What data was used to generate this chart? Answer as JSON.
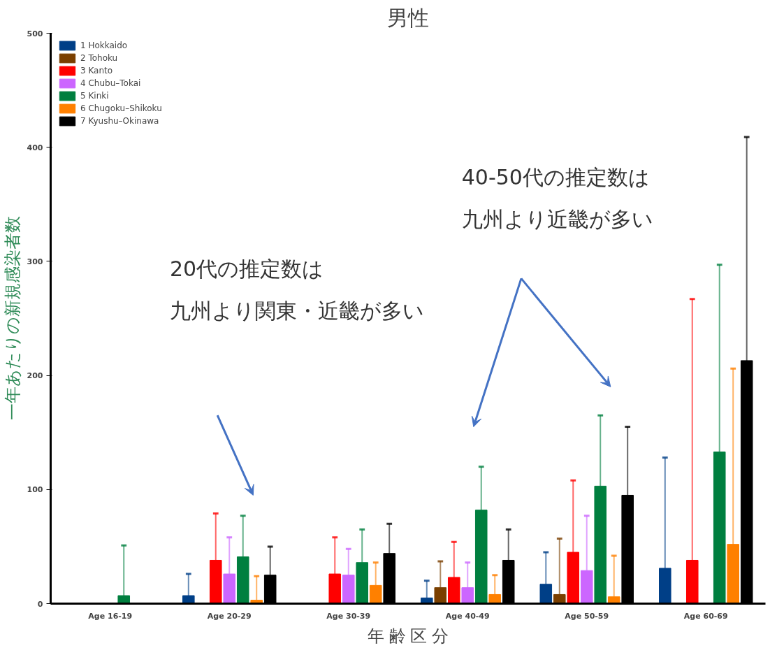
{
  "chart_data": {
    "type": "bar",
    "title": "男性",
    "xlabel": "年 齢 区 分",
    "ylabel": "一年あたりの新規感染者数",
    "categories": [
      "Age 16-19",
      "Age 20-29",
      "Age 30-39",
      "Age 40-49",
      "Age 50-59",
      "Age 60-69"
    ],
    "series": [
      {
        "name": "1 Hokkaido",
        "color": "#003f87",
        "values": [
          null,
          7,
          null,
          5,
          17,
          31
        ],
        "errors": [
          null,
          [
            7,
            26
          ],
          null,
          [
            5,
            20
          ],
          [
            17,
            45
          ],
          [
            31,
            128
          ]
        ]
      },
      {
        "name": "2 Tohoku",
        "color": "#7a3f00",
        "values": [
          null,
          null,
          null,
          14,
          8,
          null
        ],
        "errors": [
          null,
          null,
          null,
          [
            14,
            37
          ],
          [
            8,
            57
          ],
          null
        ]
      },
      {
        "name": "3 Kanto",
        "color": "#ff0000",
        "values": [
          null,
          38,
          26,
          23,
          45,
          38
        ],
        "errors": [
          null,
          [
            38,
            79
          ],
          [
            26,
            58
          ],
          [
            23,
            54
          ],
          [
            45,
            108
          ],
          [
            38,
            267
          ]
        ]
      },
      {
        "name": "4 Chubu–Tokai",
        "color": "#cc66ff",
        "values": [
          null,
          26,
          25,
          14,
          29,
          null
        ],
        "errors": [
          null,
          [
            26,
            58
          ],
          [
            25,
            48
          ],
          [
            14,
            36
          ],
          [
            29,
            77
          ],
          null
        ]
      },
      {
        "name": "5 Kinki",
        "color": "#007f3f",
        "values": [
          7,
          41,
          36,
          82,
          103,
          133
        ],
        "errors": [
          [
            7,
            51
          ],
          [
            41,
            77
          ],
          [
            36,
            65
          ],
          [
            82,
            120
          ],
          [
            103,
            165
          ],
          [
            133,
            297
          ]
        ]
      },
      {
        "name": "6 Chugoku–Shikoku",
        "color": "#ff8000",
        "values": [
          null,
          3,
          16,
          8,
          6,
          52
        ],
        "errors": [
          null,
          [
            3,
            24
          ],
          [
            16,
            36
          ],
          [
            8,
            25
          ],
          [
            6,
            42
          ],
          [
            52,
            206
          ]
        ]
      },
      {
        "name": "7 Kyushu–Okinawa",
        "color": "#000000",
        "values": [
          null,
          25,
          44,
          38,
          95,
          213
        ],
        "errors": [
          null,
          [
            25,
            50
          ],
          [
            44,
            70
          ],
          [
            38,
            65
          ],
          [
            95,
            155
          ],
          [
            213,
            409
          ]
        ]
      }
    ],
    "ylim": [
      0,
      500
    ],
    "yticks": [
      0,
      100,
      200,
      300,
      400,
      500
    ],
    "grid": false,
    "legend": "top left",
    "annotations": [
      "20代の推定数は",
      "九州より関東・近畿が多い",
      "40-50代の推定数は",
      "九州より近畿が多い"
    ]
  }
}
